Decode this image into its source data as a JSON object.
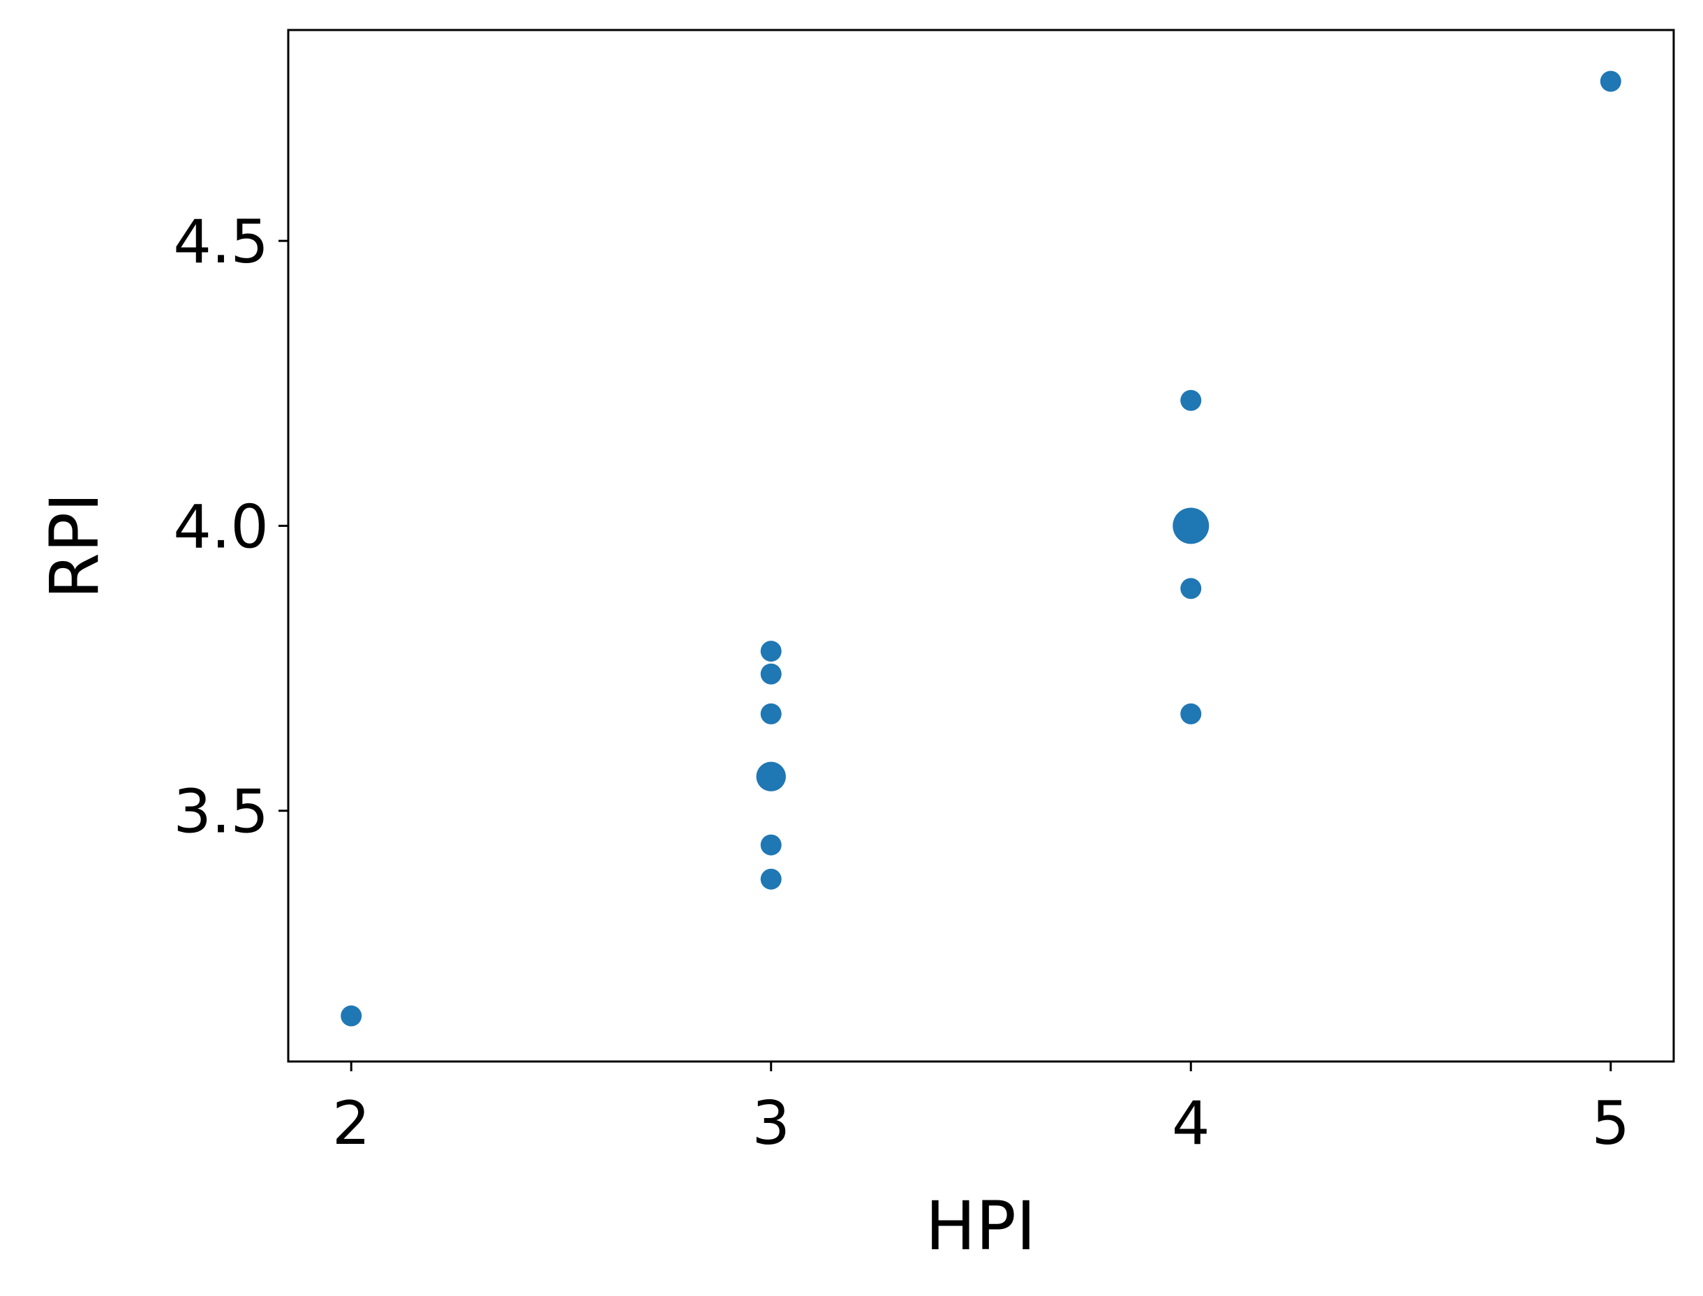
{
  "chart_data": {
    "type": "scatter",
    "xlabel": "HPI",
    "ylabel": "RPI",
    "xlim": [
      1.85,
      5.15
    ],
    "ylim": [
      3.06,
      4.87
    ],
    "x_ticks": [
      2,
      3,
      4,
      5
    ],
    "x_tick_labels": [
      "2",
      "3",
      "4",
      "5"
    ],
    "y_ticks": [
      3.5,
      4.0,
      4.5
    ],
    "y_tick_labels": [
      "3.5",
      "4.0",
      "4.5"
    ],
    "grid": false,
    "marker_color": "#1f77b4",
    "points": [
      {
        "x": 2,
        "y": 3.14,
        "count": 1
      },
      {
        "x": 3,
        "y": 3.38,
        "count": 1
      },
      {
        "x": 3,
        "y": 3.44,
        "count": 1
      },
      {
        "x": 3,
        "y": 3.56,
        "count": 2
      },
      {
        "x": 3,
        "y": 3.67,
        "count": 1
      },
      {
        "x": 3,
        "y": 3.74,
        "count": 1
      },
      {
        "x": 3,
        "y": 3.78,
        "count": 1
      },
      {
        "x": 4,
        "y": 3.67,
        "count": 1
      },
      {
        "x": 4,
        "y": 3.89,
        "count": 1
      },
      {
        "x": 4,
        "y": 4.0,
        "count": 3
      },
      {
        "x": 4,
        "y": 4.22,
        "count": 1
      },
      {
        "x": 5,
        "y": 4.78,
        "count": 1
      }
    ]
  }
}
